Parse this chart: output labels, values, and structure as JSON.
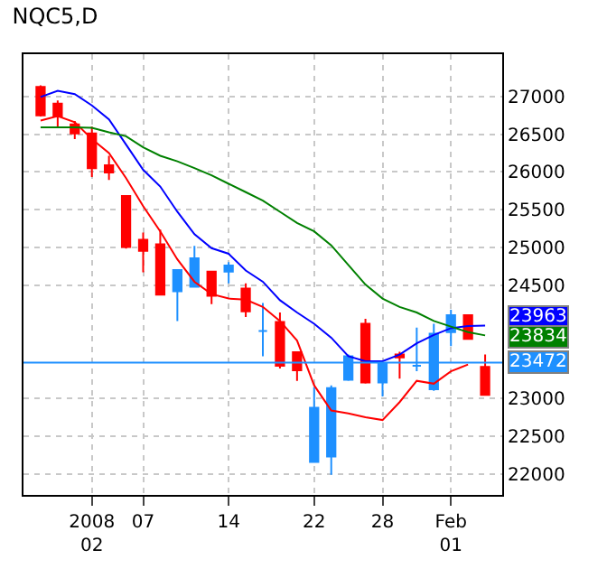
{
  "chart_data": {
    "type": "candlestick",
    "title": "NQC5,D",
    "categories": [
      null,
      null,
      null,
      "2008\n02",
      null,
      null,
      "07",
      null,
      null,
      null,
      null,
      "14",
      null,
      null,
      null,
      null,
      "22",
      null,
      null,
      null,
      "28",
      null,
      null,
      null,
      "Feb\n01",
      null,
      null
    ],
    "ohlc": [
      [
        27126,
        27148,
        26733,
        26748
      ],
      [
        26904,
        26948,
        26599,
        26733
      ],
      [
        26629,
        26674,
        26436,
        26510
      ],
      [
        26510,
        26599,
        25932,
        26050
      ],
      [
        26088,
        26214,
        25895,
        25991
      ],
      [
        25680,
        25680,
        24983,
        25005
      ],
      [
        25101,
        25197,
        24671,
        24953
      ],
      [
        25042,
        25235,
        24374,
        24374
      ],
      [
        24419,
        24700,
        24025,
        24700
      ],
      [
        24478,
        25019,
        24478,
        24856
      ],
      [
        24678,
        24678,
        24248,
        24359
      ],
      [
        24678,
        24804,
        24522,
        24760
      ],
      [
        24456,
        24522,
        24077,
        24151
      ],
      [
        23892,
        24263,
        23558,
        23892
      ],
      [
        24011,
        24137,
        23395,
        23432
      ],
      [
        23610,
        23610,
        23232,
        23373
      ],
      [
        22156,
        23150,
        22156,
        22876
      ],
      [
        22230,
        23172,
        21985,
        23135
      ],
      [
        23247,
        23580,
        23232,
        23558
      ],
      [
        23988,
        24055,
        23195,
        23209
      ],
      [
        23209,
        23469,
        23024,
        23454
      ],
      [
        23580,
        23617,
        23261,
        23543
      ],
      [
        23432,
        23936,
        23358,
        23432
      ],
      [
        23120,
        23988,
        23098,
        23855
      ],
      [
        23877,
        24174,
        23692,
        24100
      ],
      [
        24100,
        24100,
        23788,
        23788
      ],
      [
        23417,
        23580,
        23046,
        23046
      ]
    ],
    "colors": [
      "#ff0000",
      "#ff0000",
      "#ff0000",
      "#ff0000",
      "#ff0000",
      "#ff0000",
      "#ff0000",
      "#ff0000",
      "#1e90ff",
      "#1e90ff",
      "#ff0000",
      "#1e90ff",
      "#ff0000",
      "#1e90ff",
      "#ff0000",
      "#ff0000",
      "#1e90ff",
      "#1e90ff",
      "#1e90ff",
      "#ff0000",
      "#1e90ff",
      "#ff0000",
      "#1e90ff",
      "#1e90ff",
      "#1e90ff",
      "#ff0000",
      "#ff0000"
    ],
    "series": [
      {
        "type": "line",
        "color": "#ff0000",
        "values": [
          26681,
          26740,
          26659,
          26436,
          26251,
          25917,
          25546,
          25212,
          24841,
          24545,
          24381,
          24322,
          24307,
          24211,
          24025,
          23766,
          23172,
          22838,
          22801,
          22749,
          22712,
          22950,
          23232,
          23194,
          23358,
          23447,
          null
        ]
      },
      {
        "type": "line",
        "color": "#0000ff",
        "values": [
          26993,
          27074,
          27030,
          26881,
          26696,
          26362,
          26028,
          25806,
          25472,
          25175,
          24990,
          24916,
          24693,
          24545,
          24300,
          24137,
          23988,
          23803,
          23558,
          23491,
          23491,
          23580,
          23729,
          23840,
          23929,
          23959,
          23963
        ]
      },
      {
        "type": "line",
        "color": "#008000",
        "values": [
          26592,
          26592,
          26592,
          26585,
          26525,
          26473,
          26325,
          26214,
          26140,
          26050,
          25954,
          25843,
          25732,
          25620,
          25472,
          25324,
          25212,
          25027,
          24767,
          24508,
          24322,
          24211,
          24137,
          24025,
          23951,
          23877,
          23834
        ]
      }
    ],
    "ylim": [
      21720,
      27560
    ],
    "yticks": [
      22000,
      22500,
      23000,
      24500,
      25000,
      25500,
      26000,
      26500,
      27000
    ],
    "grid": true,
    "ref_lines": [
      {
        "axis": "y",
        "value": 23472,
        "label": "23472",
        "color": "#1e90ff"
      }
    ],
    "annotations": [
      "23963",
      "23834"
    ]
  }
}
